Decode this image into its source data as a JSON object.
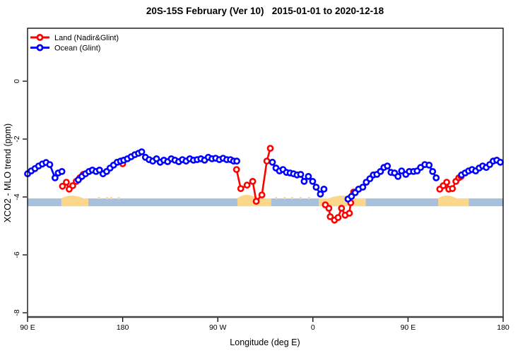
{
  "header": {
    "title": "20S-15S February (Ver 10)   2015-01-01 to 2020-12-18"
  },
  "chart_data": {
    "type": "line",
    "title": "20S-15S February (Ver 10)   2015-01-01 to 2020-12-18",
    "xlabel": "Longitude (deg E)",
    "ylabel": "XCO2 - MLO trend (ppm)",
    "x_ticks": [
      {
        "value": 90,
        "label": "90 E"
      },
      {
        "value": 180,
        "label": "180"
      },
      {
        "value": 270,
        "label": "90 W"
      },
      {
        "value": 360,
        "label": "0"
      },
      {
        "value": 450,
        "label": "90 E"
      },
      {
        "value": 540,
        "label": "180"
      }
    ],
    "y_ticks": [
      {
        "value": 0,
        "label": "0"
      },
      {
        "value": -2,
        "label": "-2"
      },
      {
        "value": -4,
        "label": "-4"
      },
      {
        "value": -6,
        "label": "-6"
      },
      {
        "value": -8,
        "label": "-8"
      }
    ],
    "xlim": [
      90,
      540
    ],
    "ylim": [
      -8.2,
      1.8
    ],
    "grid": false,
    "legend": {
      "position": "top-left",
      "items": [
        {
          "label": "Land (Nadir&Glint)",
          "color": "#ff0000"
        },
        {
          "label": "Ocean (Glint)",
          "color": "#0000ff"
        }
      ]
    },
    "series": [
      {
        "name": "Land (Nadir&Glint)",
        "color": "#ff0000",
        "marker": "open-circle",
        "segments": [
          [
            [
              123,
              -3.63
            ],
            [
              126.7,
              -3.49
            ],
            [
              129.4,
              -3.73
            ],
            [
              132.7,
              -3.61
            ],
            [
              136.1,
              -3.46
            ],
            [
              139.4,
              -3.34
            ],
            [
              142.7,
              -3.22
            ]
          ],
          [
            [
              180,
              -2.85
            ]
          ],
          [
            [
              287.7,
              -3.05
            ],
            [
              291.7,
              -3.71
            ],
            [
              297.7,
              -3.59
            ],
            [
              303,
              -3.46
            ],
            [
              306.4,
              -4.15
            ],
            [
              311.7,
              -3.93
            ],
            [
              316.4,
              -2.76
            ],
            [
              319.7,
              -2.32
            ]
          ],
          [
            [
              371.8,
              -4.27
            ],
            [
              375.1,
              -4.39
            ],
            [
              376.4,
              -4.68
            ],
            [
              380.4,
              -4.8
            ],
            [
              383.8,
              -4.71
            ],
            [
              387.1,
              -4.39
            ],
            [
              390.5,
              -4.63
            ],
            [
              394.5,
              -4.56
            ],
            [
              395.8,
              -4.2
            ],
            [
              398.5,
              -3.83
            ]
          ],
          [
            [
              480,
              -3.73
            ],
            [
              483.3,
              -3.61
            ],
            [
              486.6,
              -3.49
            ],
            [
              488.6,
              -3.73
            ],
            [
              492,
              -3.71
            ],
            [
              495.3,
              -3.46
            ],
            [
              498,
              -3.34
            ],
            [
              500.2,
              -3.29
            ]
          ]
        ]
      },
      {
        "name": "Ocean (Glint)",
        "color": "#0000ff",
        "marker": "open-circle",
        "segments": [
          [
            [
              90,
              -3.2
            ],
            [
              93.5,
              -3.1
            ],
            [
              97,
              -3.02
            ],
            [
              100.5,
              -2.93
            ],
            [
              104,
              -2.86
            ],
            [
              107.5,
              -2.81
            ],
            [
              111,
              -2.88
            ],
            [
              116,
              -3.34
            ],
            [
              119,
              -3.17
            ],
            [
              122.5,
              -3.12
            ]
          ],
          [
            [
              138,
              -3.41
            ],
            [
              141.4,
              -3.29
            ],
            [
              144.8,
              -3.2
            ],
            [
              148.1,
              -3.12
            ],
            [
              151.4,
              -3.07
            ],
            [
              154.8,
              -3.12
            ],
            [
              158.1,
              -3.07
            ],
            [
              161.4,
              -3.2
            ],
            [
              164.8,
              -3.12
            ],
            [
              168.1,
              -3.0
            ],
            [
              171.4,
              -2.9
            ],
            [
              174.8,
              -2.8
            ],
            [
              178,
              -2.76
            ],
            [
              181,
              -2.73
            ],
            [
              184.5,
              -2.68
            ],
            [
              188,
              -2.61
            ],
            [
              191.5,
              -2.54
            ],
            [
              195,
              -2.49
            ],
            [
              198,
              -2.44
            ],
            [
              201.5,
              -2.63
            ],
            [
              205,
              -2.71
            ],
            [
              208.5,
              -2.76
            ],
            [
              212,
              -2.68
            ],
            [
              215.5,
              -2.8
            ],
            [
              219,
              -2.73
            ],
            [
              222.5,
              -2.78
            ],
            [
              226,
              -2.68
            ],
            [
              229.5,
              -2.73
            ],
            [
              233,
              -2.78
            ],
            [
              236.5,
              -2.71
            ],
            [
              240,
              -2.76
            ],
            [
              243.5,
              -2.68
            ],
            [
              247,
              -2.73
            ],
            [
              250.5,
              -2.71
            ],
            [
              254,
              -2.68
            ],
            [
              257.5,
              -2.73
            ],
            [
              261,
              -2.63
            ],
            [
              264.5,
              -2.68
            ],
            [
              268,
              -2.66
            ],
            [
              271.5,
              -2.71
            ],
            [
              275,
              -2.66
            ],
            [
              278.5,
              -2.71
            ],
            [
              282,
              -2.71
            ],
            [
              285,
              -2.76
            ],
            [
              288,
              -2.76
            ]
          ],
          [
            [
              321.7,
              -2.8
            ],
            [
              325,
              -3.0
            ],
            [
              328.4,
              -3.1
            ],
            [
              331.7,
              -3.05
            ],
            [
              335,
              -3.15
            ],
            [
              338.4,
              -3.17
            ],
            [
              341.7,
              -3.2
            ],
            [
              345,
              -3.24
            ],
            [
              348.4,
              -3.22
            ],
            [
              351.7,
              -3.46
            ],
            [
              355.7,
              -3.29
            ],
            [
              359.7,
              -3.46
            ],
            [
              363.1,
              -3.66
            ],
            [
              367.1,
              -3.9
            ],
            [
              370.4,
              -3.73
            ]
          ],
          [
            [
              393.2,
              -4.07
            ],
            [
              396.5,
              -3.98
            ],
            [
              400,
              -3.85
            ],
            [
              403.2,
              -3.73
            ],
            [
              407.2,
              -3.66
            ],
            [
              410.5,
              -3.49
            ],
            [
              413.9,
              -3.37
            ],
            [
              417.2,
              -3.24
            ],
            [
              420.5,
              -3.22
            ],
            [
              423.9,
              -3.12
            ],
            [
              427.2,
              -2.98
            ],
            [
              430.5,
              -2.93
            ],
            [
              433.9,
              -3.15
            ],
            [
              437.2,
              -3.17
            ],
            [
              440.5,
              -3.29
            ],
            [
              443.9,
              -3.1
            ],
            [
              447.9,
              -3.22
            ],
            [
              451.2,
              -3.12
            ],
            [
              455.2,
              -3.12
            ],
            [
              458.6,
              -3.1
            ],
            [
              461.9,
              -2.98
            ],
            [
              465.9,
              -2.88
            ],
            [
              469.9,
              -2.9
            ],
            [
              473.3,
              -3.12
            ],
            [
              476.6,
              -3.34
            ]
          ],
          [
            [
              500.6,
              -3.24
            ],
            [
              504,
              -3.17
            ],
            [
              507.3,
              -3.1
            ],
            [
              510.6,
              -3.05
            ],
            [
              514,
              -3.1
            ],
            [
              517.3,
              -3.0
            ],
            [
              520.6,
              -2.93
            ],
            [
              524,
              -2.98
            ],
            [
              527.3,
              -2.88
            ],
            [
              530.6,
              -2.76
            ],
            [
              534,
              -2.73
            ],
            [
              537.3,
              -2.8
            ]
          ]
        ]
      }
    ],
    "surface_band": {
      "description": "ocean/land strip",
      "y_top": -4.05,
      "y_bottom": -4.32,
      "ocean_color": "#a9c0dd",
      "land_color": "#fbd78b",
      "land_patches": [
        {
          "from": 122,
          "to": 147.5,
          "bump_center": 131,
          "bump_halfwidth": 12,
          "bump_height": 4
        },
        {
          "from": 288.5,
          "to": 320.5,
          "bump_center": 296,
          "bump_halfwidth": 13,
          "bump_height": 5
        },
        {
          "from": 365.5,
          "to": 410,
          "bump_center": 388,
          "bump_halfwidth": 13,
          "bump_height": 4
        },
        {
          "from": 478.5,
          "to": 507.5,
          "bump_center": 486,
          "bump_halfwidth": 10,
          "bump_height": 4
        }
      ],
      "speckles": [
        157,
        165,
        169,
        176,
        325,
        333,
        340,
        348,
        356
      ]
    }
  }
}
